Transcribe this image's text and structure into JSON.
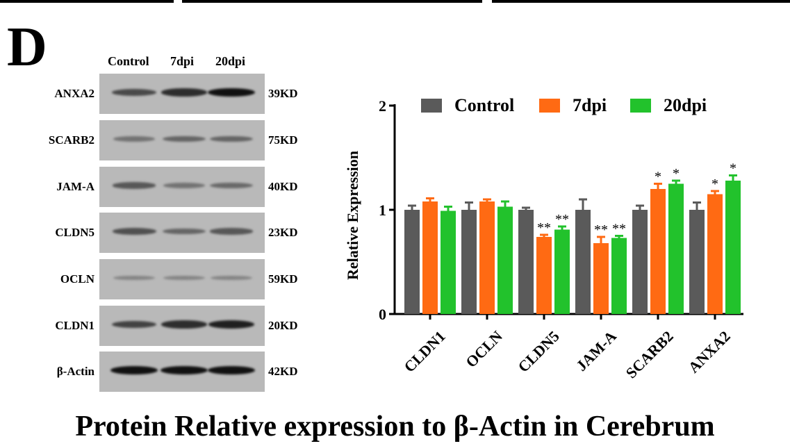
{
  "panel_letter": "D",
  "blot": {
    "columns": [
      "Control",
      "7dpi",
      "20dpi"
    ],
    "rows": [
      {
        "protein": "ANXA2",
        "size": "39KD",
        "intensity": [
          0.55,
          0.75,
          0.95
        ]
      },
      {
        "protein": "SCARB2",
        "size": "75KD",
        "intensity": [
          0.25,
          0.35,
          0.35
        ]
      },
      {
        "protein": "JAM-A",
        "size": "40KD",
        "intensity": [
          0.45,
          0.25,
          0.32
        ]
      },
      {
        "protein": "CLDN5",
        "size": "23KD",
        "intensity": [
          0.5,
          0.35,
          0.45
        ]
      },
      {
        "protein": "OCLN",
        "size": "59KD",
        "intensity": [
          0.12,
          0.12,
          0.12
        ]
      },
      {
        "protein": "CLDN1",
        "size": "20KD",
        "intensity": [
          0.6,
          0.75,
          0.85
        ]
      },
      {
        "protein": "β-Actin",
        "size": "42KD",
        "intensity": [
          0.95,
          0.95,
          0.95
        ]
      }
    ]
  },
  "chart_data": {
    "type": "bar",
    "categories": [
      "CLDN1",
      "OCLN",
      "CLDN5",
      "JAM-A",
      "SCARB2",
      "ANXA2"
    ],
    "series": [
      {
        "name": "Control",
        "color": "#5a5a5a",
        "values": [
          1.0,
          1.0,
          1.0,
          1.0,
          1.0,
          1.0
        ],
        "errors": [
          0.04,
          0.07,
          0.02,
          0.1,
          0.04,
          0.07
        ],
        "sig": [
          "",
          "",
          "",
          "",
          "",
          ""
        ]
      },
      {
        "name": "7dpi",
        "color": "#ff6a13",
        "values": [
          1.08,
          1.08,
          0.74,
          0.68,
          1.2,
          1.15
        ],
        "errors": [
          0.03,
          0.02,
          0.02,
          0.06,
          0.05,
          0.03
        ],
        "sig": [
          "",
          "",
          "**",
          "**",
          "*",
          "*"
        ]
      },
      {
        "name": "20dpi",
        "color": "#22c22c",
        "values": [
          0.99,
          1.03,
          0.81,
          0.73,
          1.25,
          1.28
        ],
        "errors": [
          0.04,
          0.05,
          0.03,
          0.02,
          0.03,
          0.05
        ],
        "sig": [
          "",
          "",
          "**",
          "**",
          "*",
          "*"
        ]
      }
    ],
    "ylabel": "Relative Expression",
    "ylim": [
      0,
      2
    ],
    "yticks": [
      0,
      1,
      2
    ],
    "legend_position": "top",
    "grid": false
  },
  "caption": "Protein Relative expression to β-Actin in Cerebrum"
}
